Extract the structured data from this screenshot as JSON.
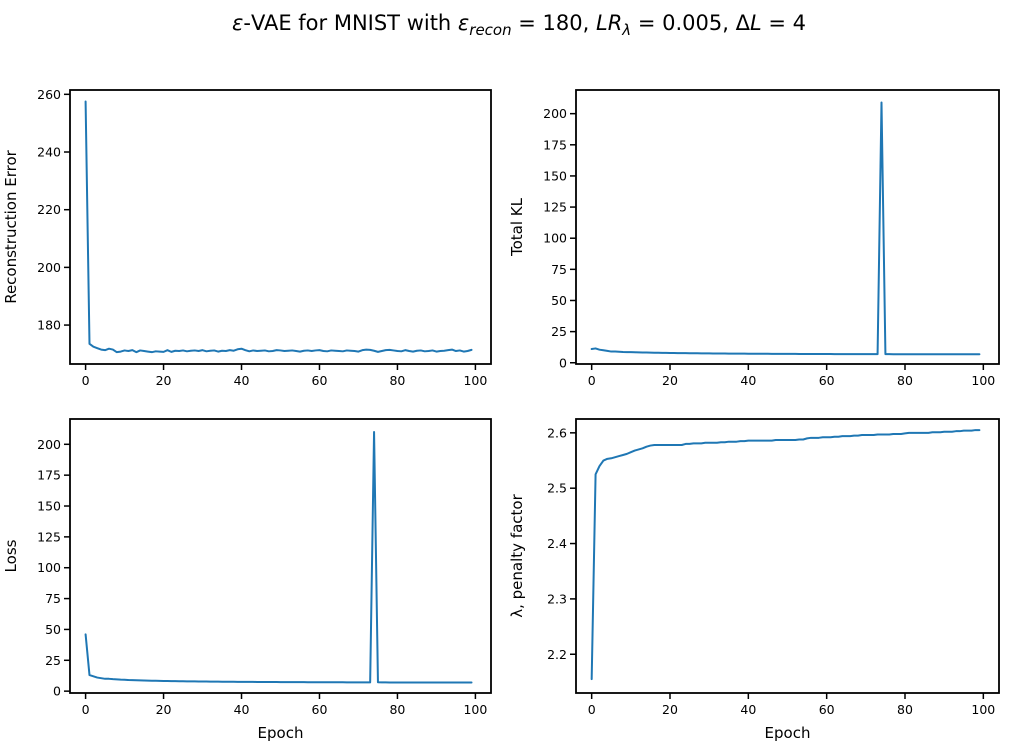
{
  "figure": {
    "title_parts": [
      "ε",
      "-VAE for MNIST with ",
      "ε",
      "recon",
      " = 180, ",
      "LR",
      "λ",
      " = 0.005, Δ",
      "L",
      " = 4"
    ],
    "line_color": "#1f77b4"
  },
  "chart_data": [
    {
      "type": "line",
      "xlabel": "",
      "ylabel": "Reconstruction Error",
      "xlim": [
        -4,
        104
      ],
      "ylim": [
        166.5,
        261.5
      ],
      "xticks": [
        0,
        20,
        40,
        60,
        80,
        100
      ],
      "yticks": [
        180,
        200,
        220,
        240,
        260
      ],
      "series": [
        {
          "x": [
            0,
            1,
            2,
            3,
            4,
            5,
            6,
            7,
            8,
            9,
            10,
            11,
            12,
            13,
            14,
            15,
            16,
            17,
            18,
            19,
            20,
            21,
            22,
            23,
            24,
            25,
            26,
            27,
            28,
            29,
            30,
            31,
            32,
            33,
            34,
            35,
            36,
            37,
            38,
            39,
            40,
            41,
            42,
            43,
            44,
            45,
            46,
            47,
            48,
            49,
            50,
            51,
            52,
            53,
            54,
            55,
            56,
            57,
            58,
            59,
            60,
            61,
            62,
            63,
            64,
            65,
            66,
            67,
            68,
            69,
            70,
            71,
            72,
            73,
            74,
            75,
            76,
            77,
            78,
            79,
            80,
            81,
            82,
            83,
            84,
            85,
            86,
            87,
            88,
            89,
            90,
            91,
            92,
            93,
            94,
            95,
            96,
            97,
            98,
            99
          ],
          "values": [
            257.5,
            173.5,
            172.5,
            172.0,
            171.5,
            171.3,
            171.8,
            171.5,
            170.6,
            170.8,
            171.2,
            171.0,
            171.3,
            170.6,
            171.2,
            171.0,
            170.8,
            170.6,
            170.9,
            170.8,
            170.7,
            171.3,
            170.7,
            171.1,
            171.0,
            171.2,
            170.9,
            171.1,
            171.2,
            171.0,
            171.3,
            170.9,
            171.1,
            171.2,
            170.8,
            171.1,
            171.0,
            171.3,
            171.1,
            171.6,
            171.8,
            171.3,
            170.9,
            171.2,
            171.0,
            171.1,
            171.2,
            170.9,
            171.0,
            171.3,
            171.2,
            171.0,
            171.1,
            171.2,
            171.0,
            170.8,
            171.1,
            171.2,
            171.0,
            171.2,
            171.3,
            171.0,
            170.9,
            171.2,
            171.1,
            171.0,
            170.9,
            171.2,
            171.1,
            171.0,
            170.8,
            171.3,
            171.5,
            171.4,
            171.1,
            170.7,
            171.0,
            171.3,
            171.4,
            171.2,
            171.0,
            170.9,
            171.3,
            171.0,
            170.8,
            171.1,
            171.2,
            170.9,
            171.0,
            171.2,
            170.8,
            171.0,
            171.1,
            171.3,
            171.5,
            171.0,
            171.2,
            170.8,
            171.0,
            171.4
          ]
        }
      ]
    },
    {
      "type": "line",
      "xlabel": "",
      "ylabel": "Total KL",
      "xlim": [
        -4,
        104
      ],
      "ylim": [
        -1,
        219
      ],
      "xticks": [
        0,
        20,
        40,
        60,
        80,
        100
      ],
      "yticks": [
        0,
        25,
        50,
        75,
        100,
        125,
        150,
        175,
        200
      ],
      "series": [
        {
          "x": [
            0,
            1,
            2,
            3,
            4,
            5,
            6,
            7,
            8,
            9,
            10,
            11,
            12,
            13,
            14,
            15,
            16,
            17,
            18,
            19,
            20,
            21,
            22,
            23,
            24,
            25,
            26,
            27,
            28,
            29,
            30,
            31,
            32,
            33,
            34,
            35,
            36,
            37,
            38,
            39,
            40,
            41,
            42,
            43,
            44,
            45,
            46,
            47,
            48,
            49,
            50,
            51,
            52,
            53,
            54,
            55,
            56,
            57,
            58,
            59,
            60,
            61,
            62,
            63,
            64,
            65,
            66,
            67,
            68,
            69,
            70,
            71,
            72,
            73,
            74,
            75,
            76,
            77,
            78,
            79,
            80,
            81,
            82,
            83,
            84,
            85,
            86,
            87,
            88,
            89,
            90,
            91,
            92,
            93,
            94,
            95,
            96,
            97,
            98,
            99
          ],
          "values": [
            11.0,
            11.5,
            10.5,
            10.0,
            9.5,
            9.0,
            9.0,
            8.8,
            8.6,
            8.5,
            8.5,
            8.4,
            8.3,
            8.2,
            8.2,
            8.1,
            8.0,
            8.0,
            7.9,
            7.9,
            7.8,
            7.8,
            7.7,
            7.7,
            7.7,
            7.6,
            7.6,
            7.6,
            7.5,
            7.5,
            7.5,
            7.4,
            7.4,
            7.4,
            7.4,
            7.3,
            7.3,
            7.3,
            7.3,
            7.3,
            7.2,
            7.2,
            7.2,
            7.2,
            7.2,
            7.2,
            7.1,
            7.1,
            7.1,
            7.1,
            7.1,
            7.1,
            7.1,
            7.0,
            7.0,
            7.0,
            7.0,
            7.0,
            7.0,
            7.0,
            7.0,
            7.0,
            6.9,
            6.9,
            6.9,
            6.9,
            6.9,
            6.9,
            6.9,
            6.9,
            6.9,
            6.9,
            6.9,
            6.9,
            209.0,
            6.9,
            6.9,
            6.8,
            6.8,
            6.8,
            6.8,
            6.8,
            6.8,
            6.8,
            6.8,
            6.8,
            6.8,
            6.8,
            6.8,
            6.8,
            6.8,
            6.8,
            6.8,
            6.8,
            6.8,
            6.8,
            6.8,
            6.8,
            6.8,
            6.8
          ]
        }
      ]
    },
    {
      "type": "line",
      "xlabel": "Epoch",
      "ylabel": "Loss",
      "xlim": [
        -4,
        104
      ],
      "ylim": [
        -1.5,
        220.5
      ],
      "xticks": [
        0,
        20,
        40,
        60,
        80,
        100
      ],
      "yticks": [
        0,
        25,
        50,
        75,
        100,
        125,
        150,
        175,
        200
      ],
      "series": [
        {
          "x": [
            0,
            1,
            2,
            3,
            4,
            5,
            6,
            7,
            8,
            9,
            10,
            11,
            12,
            13,
            14,
            15,
            16,
            17,
            18,
            19,
            20,
            21,
            22,
            23,
            24,
            25,
            26,
            27,
            28,
            29,
            30,
            31,
            32,
            33,
            34,
            35,
            36,
            37,
            38,
            39,
            40,
            41,
            42,
            43,
            44,
            45,
            46,
            47,
            48,
            49,
            50,
            51,
            52,
            53,
            54,
            55,
            56,
            57,
            58,
            59,
            60,
            61,
            62,
            63,
            64,
            65,
            66,
            67,
            68,
            69,
            70,
            71,
            72,
            73,
            74,
            75,
            76,
            77,
            78,
            79,
            80,
            81,
            82,
            83,
            84,
            85,
            86,
            87,
            88,
            89,
            90,
            91,
            92,
            93,
            94,
            95,
            96,
            97,
            98,
            99
          ],
          "values": [
            46.0,
            13.0,
            12.0,
            11.0,
            10.5,
            10.0,
            10.0,
            9.7,
            9.5,
            9.3,
            9.2,
            9.0,
            8.9,
            8.8,
            8.7,
            8.6,
            8.5,
            8.4,
            8.4,
            8.3,
            8.2,
            8.2,
            8.1,
            8.1,
            8.0,
            8.0,
            7.9,
            7.9,
            7.9,
            7.8,
            7.8,
            7.8,
            7.7,
            7.7,
            7.7,
            7.6,
            7.6,
            7.6,
            7.6,
            7.5,
            7.5,
            7.5,
            7.5,
            7.5,
            7.4,
            7.4,
            7.4,
            7.4,
            7.4,
            7.4,
            7.3,
            7.3,
            7.3,
            7.3,
            7.3,
            7.3,
            7.3,
            7.2,
            7.2,
            7.2,
            7.2,
            7.2,
            7.2,
            7.2,
            7.2,
            7.2,
            7.2,
            7.1,
            7.1,
            7.1,
            7.1,
            7.1,
            7.1,
            7.1,
            210.0,
            7.2,
            7.1,
            7.1,
            7.0,
            7.0,
            7.0,
            7.0,
            7.0,
            7.0,
            7.0,
            7.0,
            7.0,
            7.0,
            7.0,
            7.0,
            7.0,
            7.0,
            7.0,
            7.0,
            7.0,
            7.0,
            7.0,
            7.0,
            7.0,
            7.0
          ]
        }
      ]
    },
    {
      "type": "line",
      "xlabel": "Epoch",
      "ylabel": "λ, penalty factor",
      "xlim": [
        -4,
        104
      ],
      "ylim": [
        2.13,
        2.625
      ],
      "xticks": [
        0,
        20,
        40,
        60,
        80,
        100
      ],
      "yticks": [
        2.2,
        2.3,
        2.4,
        2.5,
        2.6
      ],
      "series": [
        {
          "x": [
            0,
            1,
            2,
            3,
            4,
            5,
            6,
            7,
            8,
            9,
            10,
            11,
            12,
            13,
            14,
            15,
            16,
            17,
            18,
            19,
            20,
            21,
            22,
            23,
            24,
            25,
            26,
            27,
            28,
            29,
            30,
            31,
            32,
            33,
            34,
            35,
            36,
            37,
            38,
            39,
            40,
            41,
            42,
            43,
            44,
            45,
            46,
            47,
            48,
            49,
            50,
            51,
            52,
            53,
            54,
            55,
            56,
            57,
            58,
            59,
            60,
            61,
            62,
            63,
            64,
            65,
            66,
            67,
            68,
            69,
            70,
            71,
            72,
            73,
            74,
            75,
            76,
            77,
            78,
            79,
            80,
            81,
            82,
            83,
            84,
            85,
            86,
            87,
            88,
            89,
            90,
            91,
            92,
            93,
            94,
            95,
            96,
            97,
            98,
            99
          ],
          "values": [
            2.155,
            2.525,
            2.54,
            2.55,
            2.553,
            2.554,
            2.556,
            2.558,
            2.56,
            2.562,
            2.565,
            2.568,
            2.57,
            2.572,
            2.575,
            2.577,
            2.578,
            2.578,
            2.578,
            2.578,
            2.578,
            2.578,
            2.578,
            2.578,
            2.58,
            2.58,
            2.581,
            2.581,
            2.581,
            2.582,
            2.582,
            2.582,
            2.582,
            2.583,
            2.583,
            2.584,
            2.584,
            2.584,
            2.585,
            2.585,
            2.586,
            2.586,
            2.586,
            2.586,
            2.586,
            2.586,
            2.586,
            2.587,
            2.587,
            2.587,
            2.587,
            2.587,
            2.587,
            2.588,
            2.588,
            2.59,
            2.591,
            2.591,
            2.591,
            2.592,
            2.592,
            2.592,
            2.593,
            2.593,
            2.594,
            2.594,
            2.594,
            2.595,
            2.595,
            2.596,
            2.596,
            2.596,
            2.596,
            2.597,
            2.597,
            2.597,
            2.597,
            2.598,
            2.598,
            2.598,
            2.599,
            2.6,
            2.6,
            2.6,
            2.6,
            2.6,
            2.6,
            2.601,
            2.601,
            2.601,
            2.602,
            2.602,
            2.602,
            2.603,
            2.603,
            2.604,
            2.604,
            2.604,
            2.605,
            2.605
          ]
        }
      ]
    }
  ]
}
